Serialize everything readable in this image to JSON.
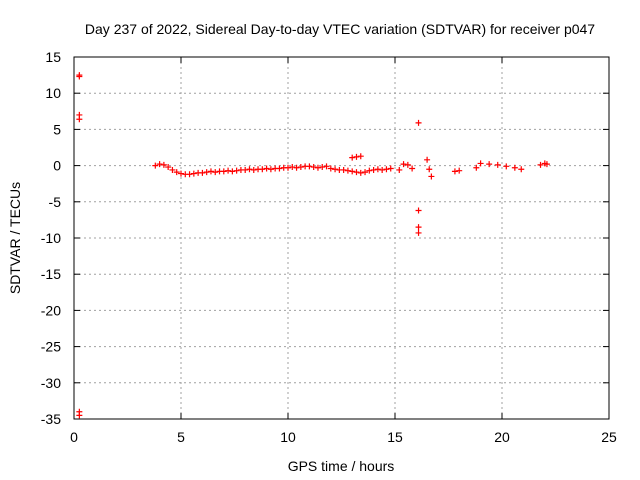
{
  "chart_data": {
    "type": "scatter",
    "title": "Day 237 of 2022, Sidereal Day-to-day VTEC variation (SDTVAR) for receiver p047",
    "xlabel": "GPS time / hours",
    "ylabel": "SDTVAR / TECUs",
    "xlim": [
      0,
      25
    ],
    "ylim": [
      -35,
      15
    ],
    "xticks": [
      0,
      5,
      10,
      15,
      20,
      25
    ],
    "yticks": [
      15,
      10,
      5,
      0,
      -5,
      -10,
      -15,
      -20,
      -25,
      -30,
      -35
    ],
    "grid": true,
    "legend": "none",
    "marker": "plus",
    "series_color": "#ff0000",
    "series": [
      {
        "name": "SDTVAR",
        "x": [
          0.25,
          0.25,
          0.25,
          0.25,
          0.25,
          0.25,
          3.8,
          4.0,
          4.2,
          4.4,
          4.6,
          4.8,
          5.0,
          5.2,
          5.4,
          5.6,
          5.8,
          6.0,
          6.2,
          6.4,
          6.6,
          6.8,
          7.0,
          7.2,
          7.4,
          7.6,
          7.8,
          8.0,
          8.2,
          8.4,
          8.6,
          8.8,
          9.0,
          9.2,
          9.4,
          9.6,
          9.8,
          10.0,
          10.2,
          10.4,
          10.6,
          10.8,
          11.0,
          11.2,
          11.4,
          11.6,
          11.8,
          12.0,
          12.2,
          12.4,
          12.6,
          12.8,
          13.0,
          13.2,
          13.4,
          13.6,
          13.8,
          14.0,
          14.2,
          14.4,
          14.6,
          14.8,
          13.0,
          13.2,
          13.4,
          15.2,
          15.4,
          15.6,
          15.8,
          16.1,
          16.1,
          16.1,
          16.1,
          16.5,
          16.6,
          16.7,
          17.8,
          18.0,
          18.8,
          19.0,
          19.4,
          19.8,
          20.2,
          20.6,
          20.9,
          21.8,
          22.0,
          22.1
        ],
        "y": [
          12.5,
          12.3,
          7.0,
          6.4,
          -34.0,
          -34.5,
          0.0,
          0.2,
          0.1,
          -0.2,
          -0.6,
          -0.9,
          -1.1,
          -1.2,
          -1.2,
          -1.1,
          -1.0,
          -1.0,
          -0.9,
          -0.8,
          -0.9,
          -0.8,
          -0.8,
          -0.7,
          -0.8,
          -0.7,
          -0.6,
          -0.6,
          -0.5,
          -0.6,
          -0.5,
          -0.5,
          -0.4,
          -0.5,
          -0.4,
          -0.4,
          -0.3,
          -0.3,
          -0.2,
          -0.3,
          -0.2,
          -0.1,
          -0.1,
          -0.2,
          -0.3,
          -0.2,
          -0.1,
          -0.4,
          -0.5,
          -0.6,
          -0.6,
          -0.7,
          -0.8,
          -0.9,
          -1.0,
          -0.9,
          -0.7,
          -0.6,
          -0.5,
          -0.6,
          -0.5,
          -0.4,
          1.1,
          1.2,
          1.3,
          -0.6,
          0.2,
          0.1,
          -0.4,
          5.9,
          -6.2,
          -8.5,
          -9.3,
          0.8,
          -0.5,
          -1.5,
          -0.8,
          -0.7,
          -0.3,
          0.3,
          0.2,
          0.1,
          -0.1,
          -0.3,
          -0.5,
          0.1,
          0.3,
          0.2
        ]
      }
    ]
  }
}
